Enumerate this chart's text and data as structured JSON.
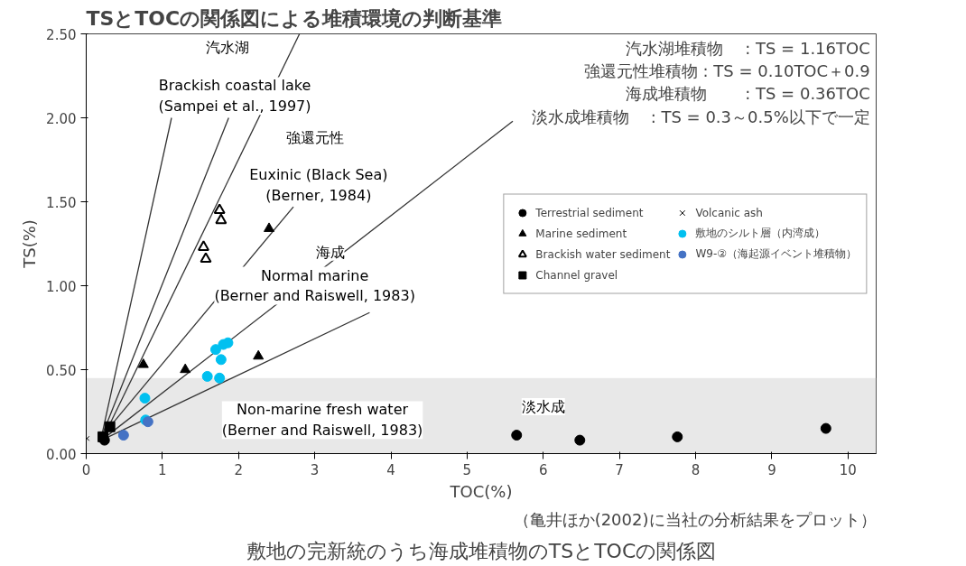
{
  "chart_data": {
    "type": "scatter",
    "title": "TSとTOCの関係図による堆積環境の判断基準",
    "xlabel": "TOC(%)",
    "ylabel": "TS(%)",
    "xlim": [
      0,
      10.37
    ],
    "ylim": [
      0,
      2.5
    ],
    "xticks": [
      0,
      1,
      2,
      3,
      4,
      5,
      6,
      7,
      8,
      9,
      10
    ],
    "yticks": [
      {
        "value": 0,
        "label": "0.00"
      },
      {
        "value": 0.5,
        "label": "0.50"
      },
      {
        "value": 1,
        "label": "1.00"
      },
      {
        "value": 1.5,
        "label": "1.50"
      },
      {
        "value": 2,
        "label": "2.00"
      },
      {
        "value": 2.5,
        "label": "2.50"
      }
    ],
    "grid": false,
    "legend": "right",
    "bands": [
      {
        "axis": "y",
        "from": 0,
        "to": 0.45,
        "color": "#d9d9d9"
      }
    ],
    "series": [
      {
        "type": "line",
        "color": "#333333",
        "line_style": "solid",
        "marker": "none",
        "x": [
          0.2,
          1.12
        ],
        "values": [
          0.1,
          2.0
        ]
      },
      {
        "type": "line",
        "color": "#333333",
        "line_style": "solid",
        "marker": "none",
        "x": [
          0.2,
          1.87
        ],
        "values": [
          0.1,
          2.0
        ]
      },
      {
        "type": "line",
        "color": "#333333",
        "line_style": "solid",
        "marker": "none",
        "x": [
          0.25,
          2.8
        ],
        "values": [
          0.12,
          2.5
        ]
      },
      {
        "type": "line",
        "color": "#333333",
        "line_style": "solid",
        "marker": "none",
        "x": [
          0.2,
          2.72
        ],
        "values": [
          0.1,
          1.47
        ]
      },
      {
        "type": "line",
        "color": "#333333",
        "line_style": "solid",
        "marker": "none",
        "x": [
          0.2,
          5.6
        ],
        "values": [
          0.08,
          1.98
        ]
      },
      {
        "type": "line",
        "color": "#333333",
        "line_style": "solid",
        "marker": "none",
        "x": [
          0.2,
          3.72
        ],
        "values": [
          0.08,
          0.84
        ]
      },
      {
        "name": "Terrestrial sediment",
        "color": "#000000",
        "marker": "circle",
        "x": [
          0.24,
          5.65,
          6.48,
          7.76,
          9.71
        ],
        "values": [
          0.08,
          0.11,
          0.08,
          0.1,
          0.15
        ]
      },
      {
        "name": "Marine sediment",
        "color": "#000000",
        "marker": "triangle",
        "x": [
          0.75,
          1.3,
          2.26,
          2.4
        ],
        "values": [
          0.53,
          0.5,
          0.58,
          1.34
        ]
      },
      {
        "name": "Brackish water sediment",
        "color": "#000000",
        "marker": "triangle_open",
        "x": [
          1.75,
          1.77,
          1.54,
          1.57
        ],
        "values": [
          1.45,
          1.39,
          1.23,
          1.16
        ]
      },
      {
        "name": "Channel gravel",
        "color": "#000000",
        "marker": "square",
        "x": [
          0.31,
          0.22
        ],
        "values": [
          0.16,
          0.1
        ]
      },
      {
        "name": "Volcanic ash",
        "color": "#000000",
        "marker": "cross",
        "x": [
          0.01
        ],
        "values": [
          0.09
        ]
      },
      {
        "name": "敷地のシルト層（内湾成）",
        "color": "#00c0f0",
        "marker": "circle",
        "x": [
          1.7,
          1.8,
          1.86,
          1.77,
          1.59,
          1.75,
          0.77,
          0.78
        ],
        "values": [
          0.62,
          0.65,
          0.66,
          0.56,
          0.46,
          0.45,
          0.33,
          0.2
        ]
      },
      {
        "name": "W9-②（海起源イベント堆積物）",
        "color": "#4472c4",
        "marker": "circle",
        "x": [
          0.81,
          0.49
        ],
        "values": [
          0.19,
          0.11
        ]
      }
    ],
    "annotations": [
      "汽水湖",
      "Brackish coastal lake\n(Sampei et al., 1997)",
      "強還元性",
      "Euxinic (Black Sea)\n(Berner, 1984)",
      "海成",
      "Normal marine\n(Berner and Raiswell, 1983)",
      "Non-marine fresh water\n(Berner and Raiswell, 1983)",
      "淡水成",
      "汽水湖堆積物　 : TS = 1.16TOC\n強還元性堆積物 : TS = 0.10TOC＋0.9\n海成堆積物　　 : TS = 0.36TOC\n淡水成堆積物　 : TS = 0.3～0.5%以下で一定",
      "（亀井ほか(2002)に当社の分析結果をプロット）",
      "敷地の完新統のうち海成堆積物のTSとTOCの関係図"
    ]
  }
}
